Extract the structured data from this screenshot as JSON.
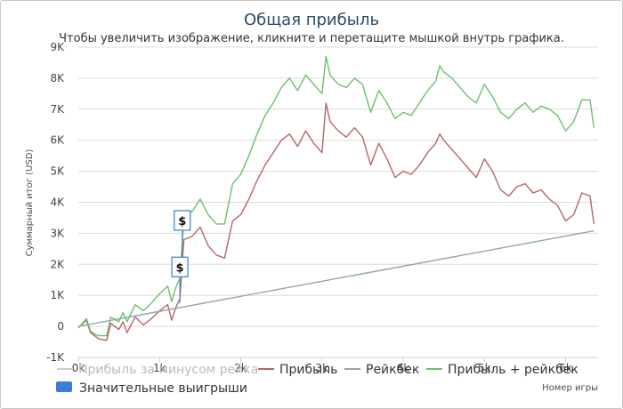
{
  "chart_data": {
    "type": "line",
    "title": "Общая прибыль",
    "subtitle": "Чтобы увеличить изображение, кликните и перетащите мышкой внутрь графика.",
    "xlabel": "Номер игры",
    "ylabel": "Суммарный итог (USD)",
    "xlim": [
      0,
      6400
    ],
    "ylim": [
      -1000,
      9000
    ],
    "x_ticks": [
      "0k",
      "1k",
      "2k",
      "3k",
      "4k",
      "5k",
      "6k"
    ],
    "x_tick_values": [
      0,
      1000,
      2000,
      3000,
      4000,
      5000,
      6000
    ],
    "y_ticks": [
      "-1K",
      "0",
      "1K",
      "2K",
      "3K",
      "4K",
      "5K",
      "6K",
      "7K",
      "8K",
      "9K"
    ],
    "y_tick_values": [
      -1000,
      0,
      1000,
      2000,
      3000,
      4000,
      5000,
      6000,
      7000,
      8000,
      9000
    ],
    "grid": "horizontal",
    "series": [
      {
        "name": "Прибыль",
        "color": "#b86464",
        "x": [
          0,
          100,
          150,
          200,
          250,
          350,
          400,
          500,
          550,
          600,
          700,
          800,
          900,
          1000,
          1100,
          1150,
          1200,
          1250,
          1300,
          1400,
          1500,
          1600,
          1700,
          1800,
          1900,
          2000,
          2100,
          2200,
          2300,
          2400,
          2500,
          2600,
          2700,
          2800,
          2900,
          3000,
          3050,
          3100,
          3200,
          3300,
          3400,
          3500,
          3600,
          3700,
          3800,
          3900,
          4000,
          4100,
          4200,
          4300,
          4400,
          4450,
          4500,
          4600,
          4700,
          4800,
          4900,
          5000,
          5100,
          5200,
          5300,
          5400,
          5500,
          5600,
          5700,
          5800,
          5900,
          6000,
          6100,
          6200,
          6300,
          6350
        ],
        "y": [
          -50,
          200,
          -200,
          -300,
          -400,
          -450,
          100,
          -100,
          150,
          -200,
          300,
          50,
          250,
          500,
          700,
          200,
          600,
          900,
          2800,
          2900,
          3200,
          2600,
          2300,
          2200,
          3400,
          3600,
          4100,
          4700,
          5200,
          5600,
          6000,
          6200,
          5800,
          6300,
          5900,
          5600,
          7200,
          6600,
          6300,
          6100,
          6400,
          6100,
          5200,
          5900,
          5400,
          4800,
          5000,
          4900,
          5200,
          5600,
          5900,
          6200,
          6000,
          5700,
          5400,
          5100,
          4800,
          5400,
          5000,
          4400,
          4200,
          4500,
          4600,
          4300,
          4400,
          4100,
          3900,
          3400,
          3600,
          4300,
          4200,
          3300
        ]
      },
      {
        "name": "Рейкбек",
        "color": "#8fa7b3",
        "x": [
          0,
          6350
        ],
        "y": [
          0,
          3080
        ]
      },
      {
        "name": "Прибыль + рейкбек",
        "color": "#6dbf6d",
        "x": [
          0,
          100,
          150,
          200,
          250,
          350,
          400,
          500,
          550,
          600,
          700,
          800,
          900,
          1000,
          1100,
          1150,
          1200,
          1250,
          1300,
          1400,
          1500,
          1600,
          1700,
          1800,
          1900,
          2000,
          2100,
          2200,
          2300,
          2400,
          2500,
          2600,
          2700,
          2800,
          2900,
          3000,
          3050,
          3100,
          3200,
          3300,
          3400,
          3500,
          3600,
          3700,
          3800,
          3900,
          4000,
          4100,
          4200,
          4300,
          4400,
          4450,
          4500,
          4600,
          4700,
          4800,
          4900,
          5000,
          5100,
          5200,
          5300,
          5400,
          5500,
          5600,
          5700,
          5800,
          5900,
          6000,
          6100,
          6200,
          6300,
          6350
        ],
        "y": [
          -50,
          250,
          -150,
          -250,
          -300,
          -300,
          300,
          150,
          450,
          150,
          700,
          500,
          750,
          1050,
          1300,
          800,
          1250,
          1550,
          3500,
          3700,
          4100,
          3600,
          3300,
          3300,
          4600,
          4900,
          5500,
          6200,
          6800,
          7200,
          7700,
          8000,
          7600,
          8100,
          7800,
          7500,
          8700,
          8100,
          7800,
          7700,
          8000,
          7800,
          6900,
          7600,
          7200,
          6700,
          6900,
          6800,
          7200,
          7600,
          7900,
          8400,
          8200,
          8000,
          7700,
          7400,
          7200,
          7800,
          7400,
          6900,
          6700,
          7000,
          7200,
          6900,
          7100,
          7000,
          6800,
          6300,
          6600,
          7300,
          7300,
          6400
        ]
      }
    ],
    "legend": [
      {
        "label": "Прибыль за минусом рейка",
        "color": "#cccccc",
        "hidden": true
      },
      {
        "label": "Прибыль",
        "color": "#b86464"
      },
      {
        "label": "Рейкбек",
        "color": "#8fa7b3"
      },
      {
        "label": "Прибыль + рейкбек",
        "color": "#6dbf6d"
      },
      {
        "label": "Значительные выигрыши",
        "color": "#3a7fd5"
      }
    ],
    "legend_placement": "bottom",
    "flags": [
      {
        "x": 1250,
        "y": 1600,
        "text": "$"
      },
      {
        "x": 1280,
        "y": 3100,
        "text": "$"
      }
    ]
  }
}
